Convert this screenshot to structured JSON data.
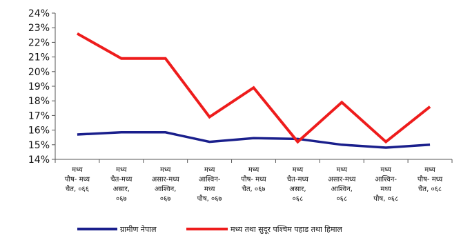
{
  "chart_data": {
    "type": "line",
    "title": "",
    "xlabel": "",
    "ylabel": "",
    "ylim": [
      14,
      24
    ],
    "yticks": [
      "14%",
      "15%",
      "16%",
      "17%",
      "18%",
      "19%",
      "20%",
      "21%",
      "22%",
      "23%",
      "24%"
    ],
    "categories": [
      [
        "मध्य",
        "पौष- मध्य",
        "चैत, ०६६"
      ],
      [
        "मध्य",
        "चैत-मध्य",
        "असार,",
        "०६७"
      ],
      [
        "मध्य",
        "असार-मध्य",
        "आश्विन,",
        "०६७"
      ],
      [
        "मध्य",
        "आश्विन-",
        "मध्य",
        "पौष, ०६७"
      ],
      [
        "मध्य",
        "पौष- मध्य",
        "चैत, ०६७"
      ],
      [
        "मध्य",
        "चैत-मध्य",
        "असार,",
        "०६८"
      ],
      [
        "मध्य",
        "असार-मध्य",
        "आश्विन,",
        "०६८"
      ],
      [
        "मध्य",
        "आश्विन-",
        "मध्य",
        "पौष, ०६८"
      ],
      [
        "मध्य",
        "पौष- मध्य",
        "चैत, ०६८"
      ]
    ],
    "series": [
      {
        "name": "ग्रामीण नेपाल",
        "color": "#1a1f8c",
        "values": [
          15.7,
          15.85,
          15.85,
          15.2,
          15.45,
          15.4,
          15.0,
          14.8,
          15.0
        ]
      },
      {
        "name": "मध्य तथा सुदूर पश्चिम पहाड तथा हिमाल",
        "color": "#ee1c1c",
        "values": [
          22.6,
          20.9,
          20.9,
          16.9,
          18.9,
          15.2,
          17.9,
          15.2,
          17.6
        ]
      }
    ],
    "grid": false,
    "legend_position": "bottom"
  }
}
